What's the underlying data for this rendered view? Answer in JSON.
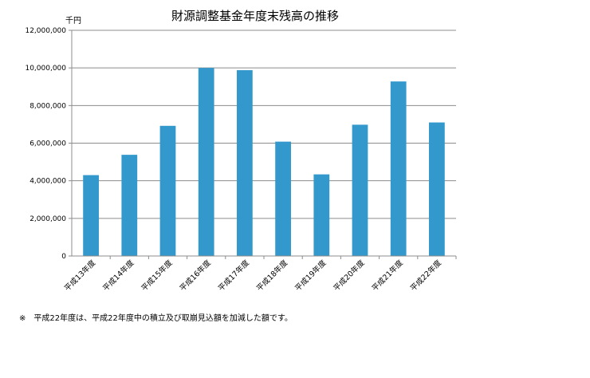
{
  "chart_data": {
    "type": "bar",
    "title": "財源調整基金年度末残高の推移",
    "unit_label": "千円",
    "categories": [
      "平成13年度",
      "平成14年度",
      "平成15年度",
      "平成16年度",
      "平成17年度",
      "平成18年度",
      "平成19年度",
      "平成20年度",
      "平成21年度",
      "平成22年度"
    ],
    "values": [
      4300000,
      5380000,
      6920000,
      10000000,
      9880000,
      6080000,
      4340000,
      6980000,
      9280000,
      7100000
    ],
    "ylim": [
      0,
      12000000
    ],
    "yticks": [
      0,
      2000000,
      4000000,
      6000000,
      8000000,
      10000000,
      12000000
    ],
    "ytick_labels": [
      "0",
      "2,000,000",
      "4,000,000",
      "6,000,000",
      "8,000,000",
      "10,000,000",
      "12,000,000"
    ],
    "xlabel": "",
    "ylabel": "",
    "grid": true,
    "bar_color": "#3399cc"
  },
  "footnote": "※　平成22年度は、平成22年度中の積立及び取崩見込額を加減した額です。"
}
